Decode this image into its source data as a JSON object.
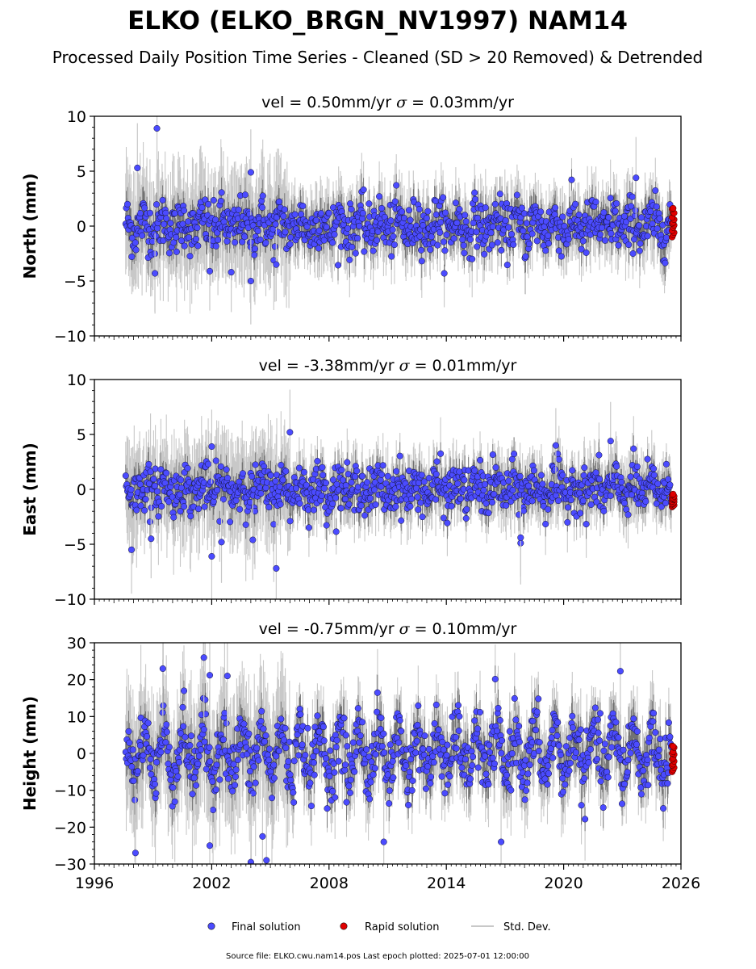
{
  "title": "ELKO (ELKO_BRGN_NV1997) NAM14",
  "subtitle": "Processed Daily Position Time Series - Cleaned (SD > 20 Removed) & Detrended",
  "legend": {
    "final": "Final solution",
    "rapid": "Rapid solution",
    "std": "Std. Dev."
  },
  "footer": "Source file: ELKO.cwu.nam14.pos  Last epoch plotted: 2025-07-01 12:00:00",
  "colors": {
    "final": "#4b4bff",
    "rapid": "#e00000",
    "std": "#c8c8c8",
    "stdDark": "#555555"
  },
  "chart_data": [
    {
      "type": "scatter",
      "panel": "north",
      "title": "vel = 0.50mm/yr   σ = 0.03mm/yr",
      "title_vel": "vel = 0.50mm/yr",
      "title_sigma": " = 0.03mm/yr",
      "ylabel": "North (mm)",
      "xlim": [
        1996,
        2026
      ],
      "ylim": [
        -10,
        10
      ],
      "yticks": [
        "10",
        "5",
        "0",
        "−5",
        "−10"
      ],
      "ytick_values": [
        10,
        5,
        0,
        -5,
        -10
      ],
      "data_span": [
        1997.6,
        2025.5
      ],
      "noise_sd": 1.3,
      "seasonal_amp": 0.6,
      "rapid_range": [
        -1.0,
        1.9
      ],
      "outliers": [
        [
          1999.2,
          8.9
        ],
        [
          1998.2,
          5.3
        ],
        [
          2004.0,
          4.9
        ],
        [
          2023.7,
          4.4
        ],
        [
          2004.0,
          -5.0
        ],
        [
          1999.1,
          -4.3
        ],
        [
          2003.0,
          -4.2
        ],
        [
          2001.9,
          -4.1
        ],
        [
          2005.3,
          -3.5
        ]
      ]
    },
    {
      "type": "scatter",
      "panel": "east",
      "title": "vel = -3.38mm/yr   σ = 0.01mm/yr",
      "title_vel": "vel = -3.38mm/yr",
      "title_sigma": " = 0.01mm/yr",
      "ylabel": "East (mm)",
      "xlim": [
        1996,
        2026
      ],
      "ylim": [
        -10,
        10
      ],
      "yticks": [
        "10",
        "5",
        "0",
        "−5",
        "−10"
      ],
      "ytick_values": [
        10,
        5,
        0,
        -5,
        -10
      ],
      "data_span": [
        1997.6,
        2025.5
      ],
      "noise_sd": 1.2,
      "seasonal_amp": 0.5,
      "rapid_range": [
        -1.6,
        -0.4
      ],
      "outliers": [
        [
          2006.0,
          5.2
        ],
        [
          2002.0,
          3.9
        ],
        [
          2022.4,
          4.4
        ],
        [
          2019.6,
          4.0
        ],
        [
          2005.3,
          -7.2
        ],
        [
          2002.0,
          -6.1
        ],
        [
          1997.9,
          -5.5
        ],
        [
          2002.5,
          -4.8
        ],
        [
          2004.1,
          -4.6
        ],
        [
          2017.8,
          -4.9
        ],
        [
          2017.8,
          -4.4
        ],
        [
          1998.9,
          -4.5
        ]
      ]
    },
    {
      "type": "scatter",
      "panel": "height",
      "title": "vel = -0.75mm/yr   σ = 0.10mm/yr",
      "title_vel": "vel = -0.75mm/yr",
      "title_sigma": " = 0.10mm/yr",
      "ylabel": "Height (mm)",
      "xlim": [
        1996,
        2026
      ],
      "ylim": [
        -30,
        30
      ],
      "yticks": [
        "30",
        "20",
        "10",
        "0",
        "−10",
        "−20",
        "−30"
      ],
      "ytick_values": [
        30,
        20,
        10,
        0,
        -10,
        -20,
        -30
      ],
      "xticks": [
        "1996",
        "2002",
        "2008",
        "2014",
        "2020",
        "2026"
      ],
      "xtick_values": [
        1996,
        2002,
        2008,
        2014,
        2020,
        2026
      ],
      "data_span": [
        1997.6,
        2025.5
      ],
      "noise_sd": 4.5,
      "seasonal_amp": 6.0,
      "rapid_range": [
        -5.0,
        2.8
      ],
      "outliers": [
        [
          2001.6,
          26.0
        ],
        [
          2022.9,
          22.3
        ],
        [
          1999.5,
          23.0
        ],
        [
          2001.9,
          21.2
        ],
        [
          2002.8,
          21.0
        ],
        [
          1998.1,
          -27.0
        ],
        [
          2004.0,
          -29.5
        ],
        [
          2004.8,
          -29.0
        ],
        [
          2004.6,
          -22.5
        ],
        [
          2001.9,
          -25.0
        ],
        [
          2010.8,
          -24.0
        ],
        [
          2016.8,
          -24.0
        ]
      ]
    }
  ]
}
